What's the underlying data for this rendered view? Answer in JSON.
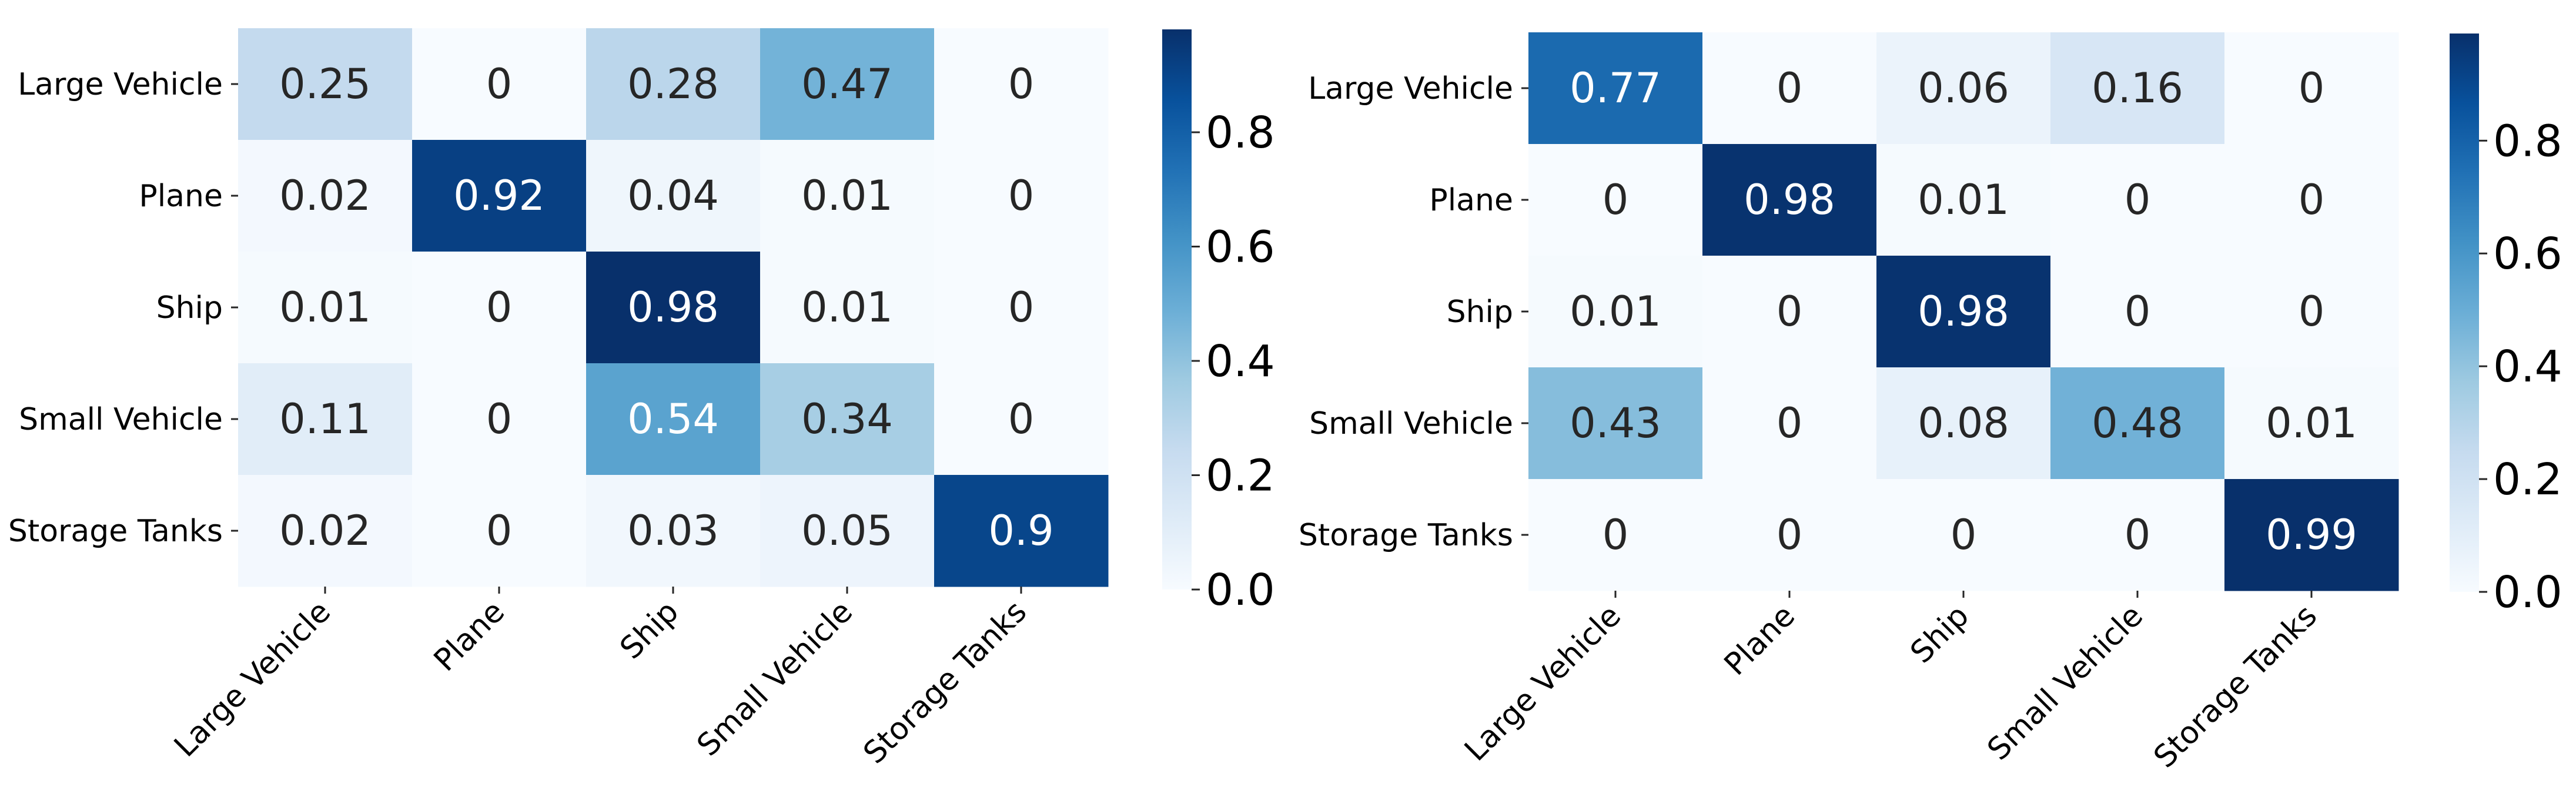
{
  "colormap": {
    "name": "Blues",
    "stops": [
      "#f7fbff",
      "#deebf7",
      "#c6dbef",
      "#9ecae1",
      "#6baed6",
      "#4292c6",
      "#2171b5",
      "#08519c",
      "#08306b"
    ],
    "text_light": "#ffffff",
    "text_dark": "#262626"
  },
  "chart_data": [
    {
      "type": "heatmap",
      "title": "",
      "xlabel": "",
      "ylabel": "",
      "row_labels": [
        "Large Vehicle",
        "Plane",
        "Ship",
        "Small Vehicle",
        "Storage Tanks"
      ],
      "col_labels": [
        "Large Vehicle",
        "Plane",
        "Ship",
        "Small Vehicle",
        "Storage Tanks"
      ],
      "values": [
        [
          0.25,
          0,
          0.28,
          0.47,
          0
        ],
        [
          0.02,
          0.92,
          0.04,
          0.01,
          0
        ],
        [
          0.01,
          0,
          0.98,
          0.01,
          0
        ],
        [
          0.11,
          0,
          0.54,
          0.34,
          0
        ],
        [
          0.02,
          0,
          0.03,
          0.05,
          0.9
        ]
      ],
      "vmin": 0.0,
      "vmax": 0.98,
      "colorbar_ticks": [
        "0.0",
        "0.2",
        "0.4",
        "0.6",
        "0.8"
      ],
      "colorbar_tick_values": [
        0.0,
        0.2,
        0.4,
        0.6,
        0.8
      ]
    },
    {
      "type": "heatmap",
      "title": "",
      "xlabel": "",
      "ylabel": "",
      "row_labels": [
        "Large Vehicle",
        "Plane",
        "Ship",
        "Small Vehicle",
        "Storage Tanks"
      ],
      "col_labels": [
        "Large Vehicle",
        "Plane",
        "Ship",
        "Small Vehicle",
        "Storage Tanks"
      ],
      "values": [
        [
          0.77,
          0,
          0.06,
          0.16,
          0
        ],
        [
          0,
          0.98,
          0.01,
          0,
          0
        ],
        [
          0.01,
          0,
          0.98,
          0,
          0
        ],
        [
          0.43,
          0,
          0.08,
          0.48,
          0.01
        ],
        [
          0,
          0,
          0,
          0,
          0.99
        ]
      ],
      "vmin": 0.0,
      "vmax": 0.99,
      "colorbar_ticks": [
        "0.0",
        "0.2",
        "0.4",
        "0.6",
        "0.8"
      ],
      "colorbar_tick_values": [
        0.0,
        0.2,
        0.4,
        0.6,
        0.8
      ]
    }
  ]
}
